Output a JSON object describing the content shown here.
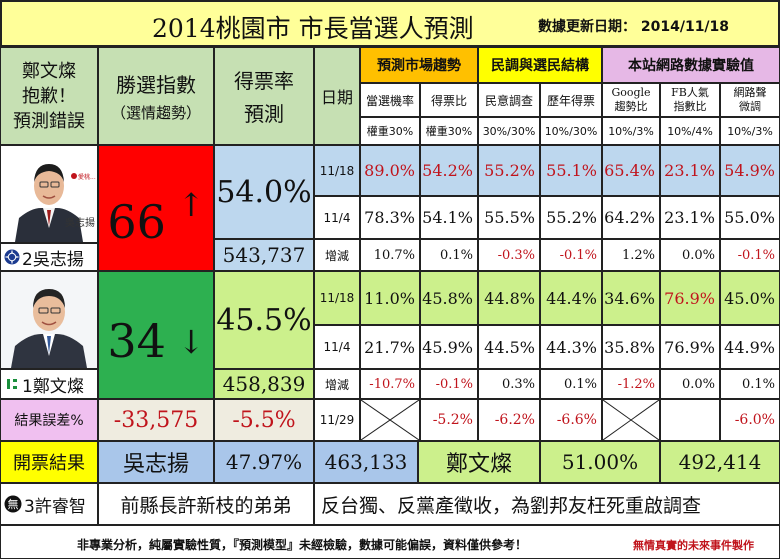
{
  "header": {
    "title": "2014桃園市 市長當選人預測",
    "update_label": "數據更新日期： 2014/11/18"
  },
  "apology": [
    "鄭文燦",
    "抱歉！",
    "預測錯誤"
  ],
  "col_headers": {
    "win_index": "勝選指數",
    "win_index_sub": "（選情趨勢）",
    "vote_rate": "得票率",
    "vote_rate_sub": "預測",
    "date": "日期"
  },
  "groups": {
    "market": "預測市場趨勢",
    "survey": "民調與選民結構",
    "internet": "本站網路數據實驗值"
  },
  "sub_headers": {
    "market_prob": "當選機率",
    "market_ratio": "得票比",
    "poll": "民意調查",
    "past_votes": "歷年得票",
    "google_1": "Google",
    "google_2": "趨勢比",
    "fb_1": "FB人氣",
    "fb_2": "指數比",
    "net_1": "網路聲",
    "net_2": "微調"
  },
  "weights": [
    "權重30%",
    "權重30%",
    "30%/30%",
    "10%/30%",
    "10%/3%",
    "10%/4%",
    "10%/3%"
  ],
  "candidate_a": {
    "label": "2吳志揚",
    "index": "66",
    "arrow": "↑",
    "rate": "54.0%",
    "votes": "543,737",
    "photo_caption": "吳志揚",
    "rows": [
      {
        "date": "11/18",
        "values": [
          "89.0%",
          "54.2%",
          "55.2%",
          "55.1%",
          "65.4%",
          "23.1%",
          "54.9%"
        ]
      },
      {
        "date": "11/4",
        "values": [
          "78.3%",
          "54.1%",
          "55.5%",
          "55.2%",
          "64.2%",
          "23.1%",
          "55.0%"
        ]
      },
      {
        "date": "增減",
        "values": [
          "10.7%",
          "0.1%",
          "-0.3%",
          "-0.1%",
          "1.2%",
          "0.0%",
          "-0.1%"
        ]
      }
    ]
  },
  "candidate_b": {
    "label": "1鄭文燦",
    "index": "34",
    "arrow": "↓",
    "rate": "45.5%",
    "votes": "458,839",
    "rows": [
      {
        "date": "11/18",
        "values": [
          "11.0%",
          "45.8%",
          "44.8%",
          "44.4%",
          "34.6%",
          "76.9%",
          "45.0%"
        ]
      },
      {
        "date": "11/4",
        "values": [
          "21.7%",
          "45.9%",
          "44.5%",
          "44.3%",
          "35.8%",
          "76.9%",
          "44.9%"
        ]
      },
      {
        "date": "增減",
        "values": [
          "-10.7%",
          "-0.1%",
          "0.3%",
          "0.1%",
          "-1.2%",
          "0.0%",
          "0.1%"
        ]
      }
    ]
  },
  "error_row": {
    "label": "結果誤差%",
    "diff_votes": "-33,575",
    "diff_rate": "-5.5%",
    "date": "11/29",
    "values": [
      "",
      "-5.2%",
      "-6.2%",
      "-6.6%",
      "",
      "",
      "-6.0%"
    ]
  },
  "result_row": {
    "label": "開票結果",
    "name_a": "吳志揚",
    "rate_a": "47.97%",
    "votes_a": "463,133",
    "name_b": "鄭文燦",
    "rate_b": "51.00%",
    "votes_b": "492,414"
  },
  "third_row": {
    "label": "3許睿智",
    "desc": "前縣長許新枝的弟弟",
    "note": "反台獨、反黨產徵收，為劉邦友枉死重啟調查"
  },
  "footer": {
    "disclaimer": "非專業分析，純屬實驗性質，『預測模型』未經檢驗，數據可能偏誤，資料僅供參考！",
    "brand": "無情真實的未來事件製作"
  },
  "colors": {
    "title_bg": "#ffff99",
    "header_bg": "#c6e0b3",
    "group_orange": "#ffc000",
    "group_yellow": "#ffff00",
    "group_purple": "#e6b8e6",
    "red_index": "#ff0000",
    "green_index": "#2db050",
    "rate_blue": "#bdd7ee",
    "rate_green": "#ccf08c",
    "result_yellow": "#ffff00",
    "result_blue": "#a9c6ea",
    "result_green": "#ccf08c",
    "error_pink": "#f0c0f0",
    "error_beige": "#efece0",
    "red_text": "#c0141c"
  }
}
